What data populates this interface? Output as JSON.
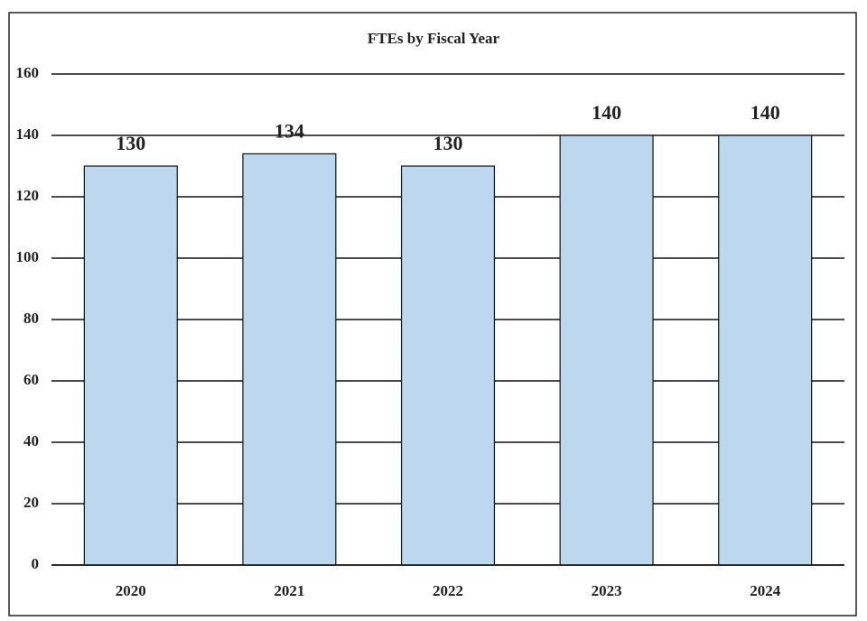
{
  "chart_data": {
    "type": "bar",
    "title": "FTEs by Fiscal Year",
    "categories": [
      "2020",
      "2021",
      "2022",
      "2023",
      "2024"
    ],
    "values": [
      130,
      134,
      130,
      140,
      140
    ],
    "color": "#bdd7ee",
    "ylim": [
      0,
      160
    ],
    "yticks": [
      0,
      20,
      40,
      60,
      80,
      100,
      120,
      140,
      160
    ],
    "grid": true
  }
}
